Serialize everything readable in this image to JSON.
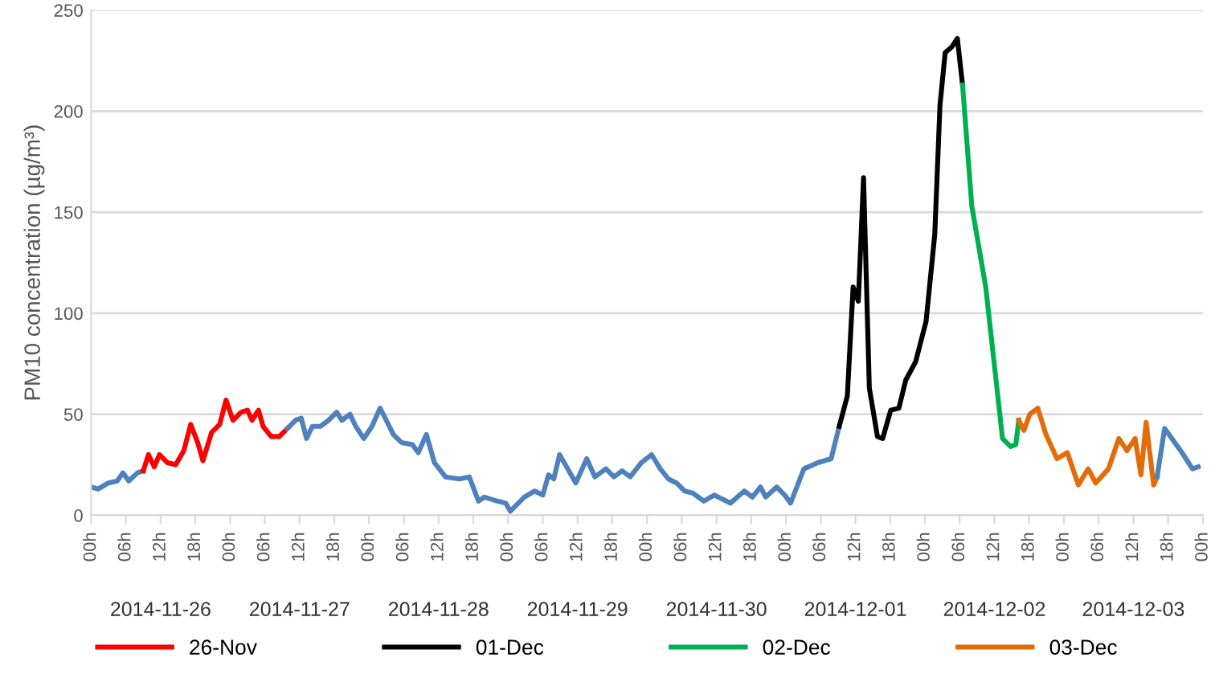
{
  "chart_data": {
    "type": "line",
    "ylabel": "PM10 concentration (µg/m³)",
    "xlim": [
      "2014-11-26T00:00",
      "2014-12-04T00:00"
    ],
    "ylim": [
      0,
      250
    ],
    "yticks": [
      0,
      50,
      100,
      150,
      200,
      250
    ],
    "xticks": [
      {
        "value": "2014-11-26T00:00",
        "label": "00h"
      },
      {
        "value": "2014-11-26T06:00",
        "label": "06h"
      },
      {
        "value": "2014-11-26T12:00",
        "label": "12h"
      },
      {
        "value": "2014-11-26T18:00",
        "label": "18h"
      },
      {
        "value": "2014-11-27T00:00",
        "label": "00h"
      },
      {
        "value": "2014-11-27T06:00",
        "label": "06h"
      },
      {
        "value": "2014-11-27T12:00",
        "label": "12h"
      },
      {
        "value": "2014-11-27T18:00",
        "label": "18h"
      },
      {
        "value": "2014-11-28T00:00",
        "label": "00h"
      },
      {
        "value": "2014-11-28T06:00",
        "label": "06h"
      },
      {
        "value": "2014-11-28T12:00",
        "label": "12h"
      },
      {
        "value": "2014-11-28T18:00",
        "label": "18h"
      },
      {
        "value": "2014-11-29T00:00",
        "label": "00h"
      },
      {
        "value": "2014-11-29T06:00",
        "label": "06h"
      },
      {
        "value": "2014-11-29T12:00",
        "label": "12h"
      },
      {
        "value": "2014-11-29T18:00",
        "label": "18h"
      },
      {
        "value": "2014-11-30T00:00",
        "label": "00h"
      },
      {
        "value": "2014-11-30T06:00",
        "label": "06h"
      },
      {
        "value": "2014-11-30T12:00",
        "label": "12h"
      },
      {
        "value": "2014-11-30T18:00",
        "label": "18h"
      },
      {
        "value": "2014-12-01T00:00",
        "label": "00h"
      },
      {
        "value": "2014-12-01T06:00",
        "label": "06h"
      },
      {
        "value": "2014-12-01T12:00",
        "label": "12h"
      },
      {
        "value": "2014-12-01T18:00",
        "label": "18h"
      },
      {
        "value": "2014-12-02T00:00",
        "label": "00h"
      },
      {
        "value": "2014-12-02T06:00",
        "label": "06h"
      },
      {
        "value": "2014-12-02T12:00",
        "label": "12h"
      },
      {
        "value": "2014-12-02T18:00",
        "label": "18h"
      },
      {
        "value": "2014-12-03T00:00",
        "label": "00h"
      },
      {
        "value": "2014-12-03T06:00",
        "label": "06h"
      },
      {
        "value": "2014-12-03T12:00",
        "label": "12h"
      },
      {
        "value": "2014-12-03T18:00",
        "label": "18h"
      },
      {
        "value": "2014-12-04T00:00",
        "label": "00h"
      }
    ],
    "x2lim": [
      "2014-11-26T00:00",
      "2014-12-04T00:00"
    ],
    "x2ticks": [
      {
        "value": "2014-11-26T12:00",
        "label": "2014-11-26"
      },
      {
        "value": "2014-11-27T12:00",
        "label": "2014-11-27"
      },
      {
        "value": "2014-11-28T12:00",
        "label": "2014-11-28"
      },
      {
        "value": "2014-11-29T12:00",
        "label": "2014-11-29"
      },
      {
        "value": "2014-11-30T12:00",
        "label": "2014-11-30"
      },
      {
        "value": "2014-12-01T12:00",
        "label": "2014-12-01"
      },
      {
        "value": "2014-12-02T12:00",
        "label": "2014-12-02"
      },
      {
        "value": "2014-12-03T12:00",
        "label": "2014-12-03"
      }
    ],
    "grid": "y",
    "legend": "bottom",
    "series": [
      {
        "color": "#4f81bd",
        "x": [
          "2014-11-26T00:00",
          "2014-11-26T01:12",
          "2014-11-26T03:00",
          "2014-11-26T04:30",
          "2014-11-26T05:30",
          "2014-11-26T06:30",
          "2014-11-26T08:00",
          "2014-11-26T09:00"
        ],
        "values": [
          14,
          13,
          16,
          17,
          21,
          17,
          21,
          22
        ]
      },
      {
        "name": "26-Nov",
        "color": "#ff0000",
        "x": [
          "2014-11-26T09:00",
          "2014-11-26T09:54",
          "2014-11-26T10:54",
          "2014-11-26T11:48",
          "2014-11-26T13:12",
          "2014-11-26T14:36",
          "2014-11-26T16:00",
          "2014-11-26T17:12",
          "2014-11-26T18:24",
          "2014-11-26T19:18",
          "2014-11-26T20:48",
          "2014-11-26T22:12",
          "2014-11-26T23:18",
          "2014-11-27T00:30",
          "2014-11-27T01:54",
          "2014-11-27T03:00",
          "2014-11-27T03:48",
          "2014-11-27T04:54",
          "2014-11-27T05:42",
          "2014-11-27T07:06",
          "2014-11-27T08:30",
          "2014-11-27T09:54"
        ],
        "values": [
          22,
          30,
          24,
          30,
          26,
          25,
          32,
          45,
          36,
          27,
          41,
          45,
          57,
          47,
          51,
          52,
          47,
          52,
          44,
          39,
          39,
          43
        ]
      },
      {
        "color": "#4f81bd",
        "x": [
          "2014-11-27T09:54",
          "2014-11-27T11:18",
          "2014-11-27T12:18",
          "2014-11-27T13:12",
          "2014-11-27T14:12",
          "2014-11-27T15:36",
          "2014-11-27T17:00",
          "2014-11-27T18:24",
          "2014-11-27T19:18",
          "2014-11-27T20:42",
          "2014-11-27T21:42",
          "2014-11-27T23:06",
          "2014-11-28T00:30",
          "2014-11-28T01:54",
          "2014-11-28T02:48",
          "2014-11-28T04:12",
          "2014-11-28T05:36",
          "2014-11-28T07:30",
          "2014-11-28T08:30",
          "2014-11-28T09:54",
          "2014-11-28T11:18",
          "2014-11-28T13:12",
          "2014-11-28T15:36",
          "2014-11-28T17:18",
          "2014-11-28T18:54",
          "2014-11-28T19:54",
          "2014-11-28T22:12",
          "2014-11-28T23:36",
          "2014-11-29T00:24",
          "2014-11-29T02:48",
          "2014-11-29T04:36",
          "2014-11-29T06:00",
          "2014-11-29T07:00",
          "2014-11-29T07:54",
          "2014-11-29T08:54",
          "2014-11-29T10:18",
          "2014-11-29T11:42",
          "2014-11-29T13:36",
          "2014-11-29T15:00",
          "2014-11-29T16:54",
          "2014-11-29T18:18",
          "2014-11-29T19:42",
          "2014-11-29T21:06",
          "2014-11-29T23:00",
          "2014-11-30T00:48",
          "2014-11-30T02:18",
          "2014-11-30T03:42",
          "2014-11-30T05:06",
          "2014-11-30T06:30",
          "2014-11-30T07:54",
          "2014-11-30T09:48",
          "2014-11-30T11:36",
          "2014-11-30T14:24",
          "2014-11-30T16:48",
          "2014-11-30T18:12",
          "2014-11-30T19:36",
          "2014-11-30T20:30",
          "2014-11-30T22:24",
          "2014-11-30T23:48",
          "2014-12-01T00:48",
          "2014-12-01T03:06",
          "2014-12-01T05:30",
          "2014-12-01T07:48",
          "2014-12-01T09:12"
        ],
        "values": [
          43,
          47,
          48,
          38,
          44,
          44,
          47,
          51,
          47,
          50,
          44,
          38,
          44,
          53,
          48,
          40,
          36,
          35,
          31,
          40,
          26,
          19,
          18,
          19,
          7,
          9,
          7,
          6,
          2,
          9,
          12,
          10,
          20,
          18,
          30,
          23,
          16,
          28,
          19,
          23,
          19,
          22,
          19,
          26,
          30,
          23,
          18,
          16,
          12,
          11,
          7,
          10,
          6,
          12,
          9,
          14,
          9,
          14,
          10,
          6,
          23,
          26,
          28,
          44
        ]
      },
      {
        "name": "01-Dec",
        "color": "#000000",
        "x": [
          "2014-12-01T09:12",
          "2014-12-01T10:36",
          "2014-12-01T11:36",
          "2014-12-01T12:30",
          "2014-12-01T13:24",
          "2014-12-01T14:24",
          "2014-12-01T15:48",
          "2014-12-01T16:42",
          "2014-12-01T18:06",
          "2014-12-01T19:30",
          "2014-12-01T20:42",
          "2014-12-01T22:24",
          "2014-12-02T00:12",
          "2014-12-02T01:42",
          "2014-12-02T02:36",
          "2014-12-02T03:30",
          "2014-12-02T04:42",
          "2014-12-02T05:36",
          "2014-12-02T06:30"
        ],
        "values": [
          44,
          59,
          113,
          106,
          167,
          63,
          39,
          38,
          52,
          53,
          67,
          76,
          96,
          139,
          203,
          229,
          232,
          236,
          213
        ]
      },
      {
        "name": "02-Dec",
        "color": "#00b050",
        "x": [
          "2014-12-02T06:30",
          "2014-12-02T08:06",
          "2014-12-02T10:30",
          "2014-12-02T13:24",
          "2014-12-02T14:48",
          "2014-12-02T15:42",
          "2014-12-02T16:12"
        ],
        "values": [
          213,
          153,
          113,
          38,
          34,
          35,
          47
        ]
      },
      {
        "name": "03-Dec",
        "color": "#e36c09",
        "x": [
          "2014-12-02T16:12",
          "2014-12-02T17:06",
          "2014-12-02T18:06",
          "2014-12-02T19:30",
          "2014-12-02T20:54",
          "2014-12-02T22:48",
          "2014-12-03T00:36",
          "2014-12-03T02:30",
          "2014-12-03T04:12",
          "2014-12-03T05:30",
          "2014-12-03T07:42",
          "2014-12-03T09:30",
          "2014-12-03T10:54",
          "2014-12-03T12:18",
          "2014-12-03T13:18",
          "2014-12-03T14:12",
          "2014-12-03T15:30",
          "2014-12-03T16:06"
        ],
        "values": [
          47,
          42,
          50,
          53,
          40,
          28,
          31,
          15,
          23,
          16,
          23,
          38,
          32,
          38,
          20,
          46,
          15,
          19
        ]
      },
      {
        "color": "#4f81bd",
        "x": [
          "2014-12-03T16:06",
          "2014-12-03T17:24",
          "2014-12-03T20:24",
          "2014-12-03T22:12",
          "2014-12-03T23:12"
        ],
        "values": [
          19,
          43,
          31,
          23,
          24
        ]
      }
    ]
  }
}
